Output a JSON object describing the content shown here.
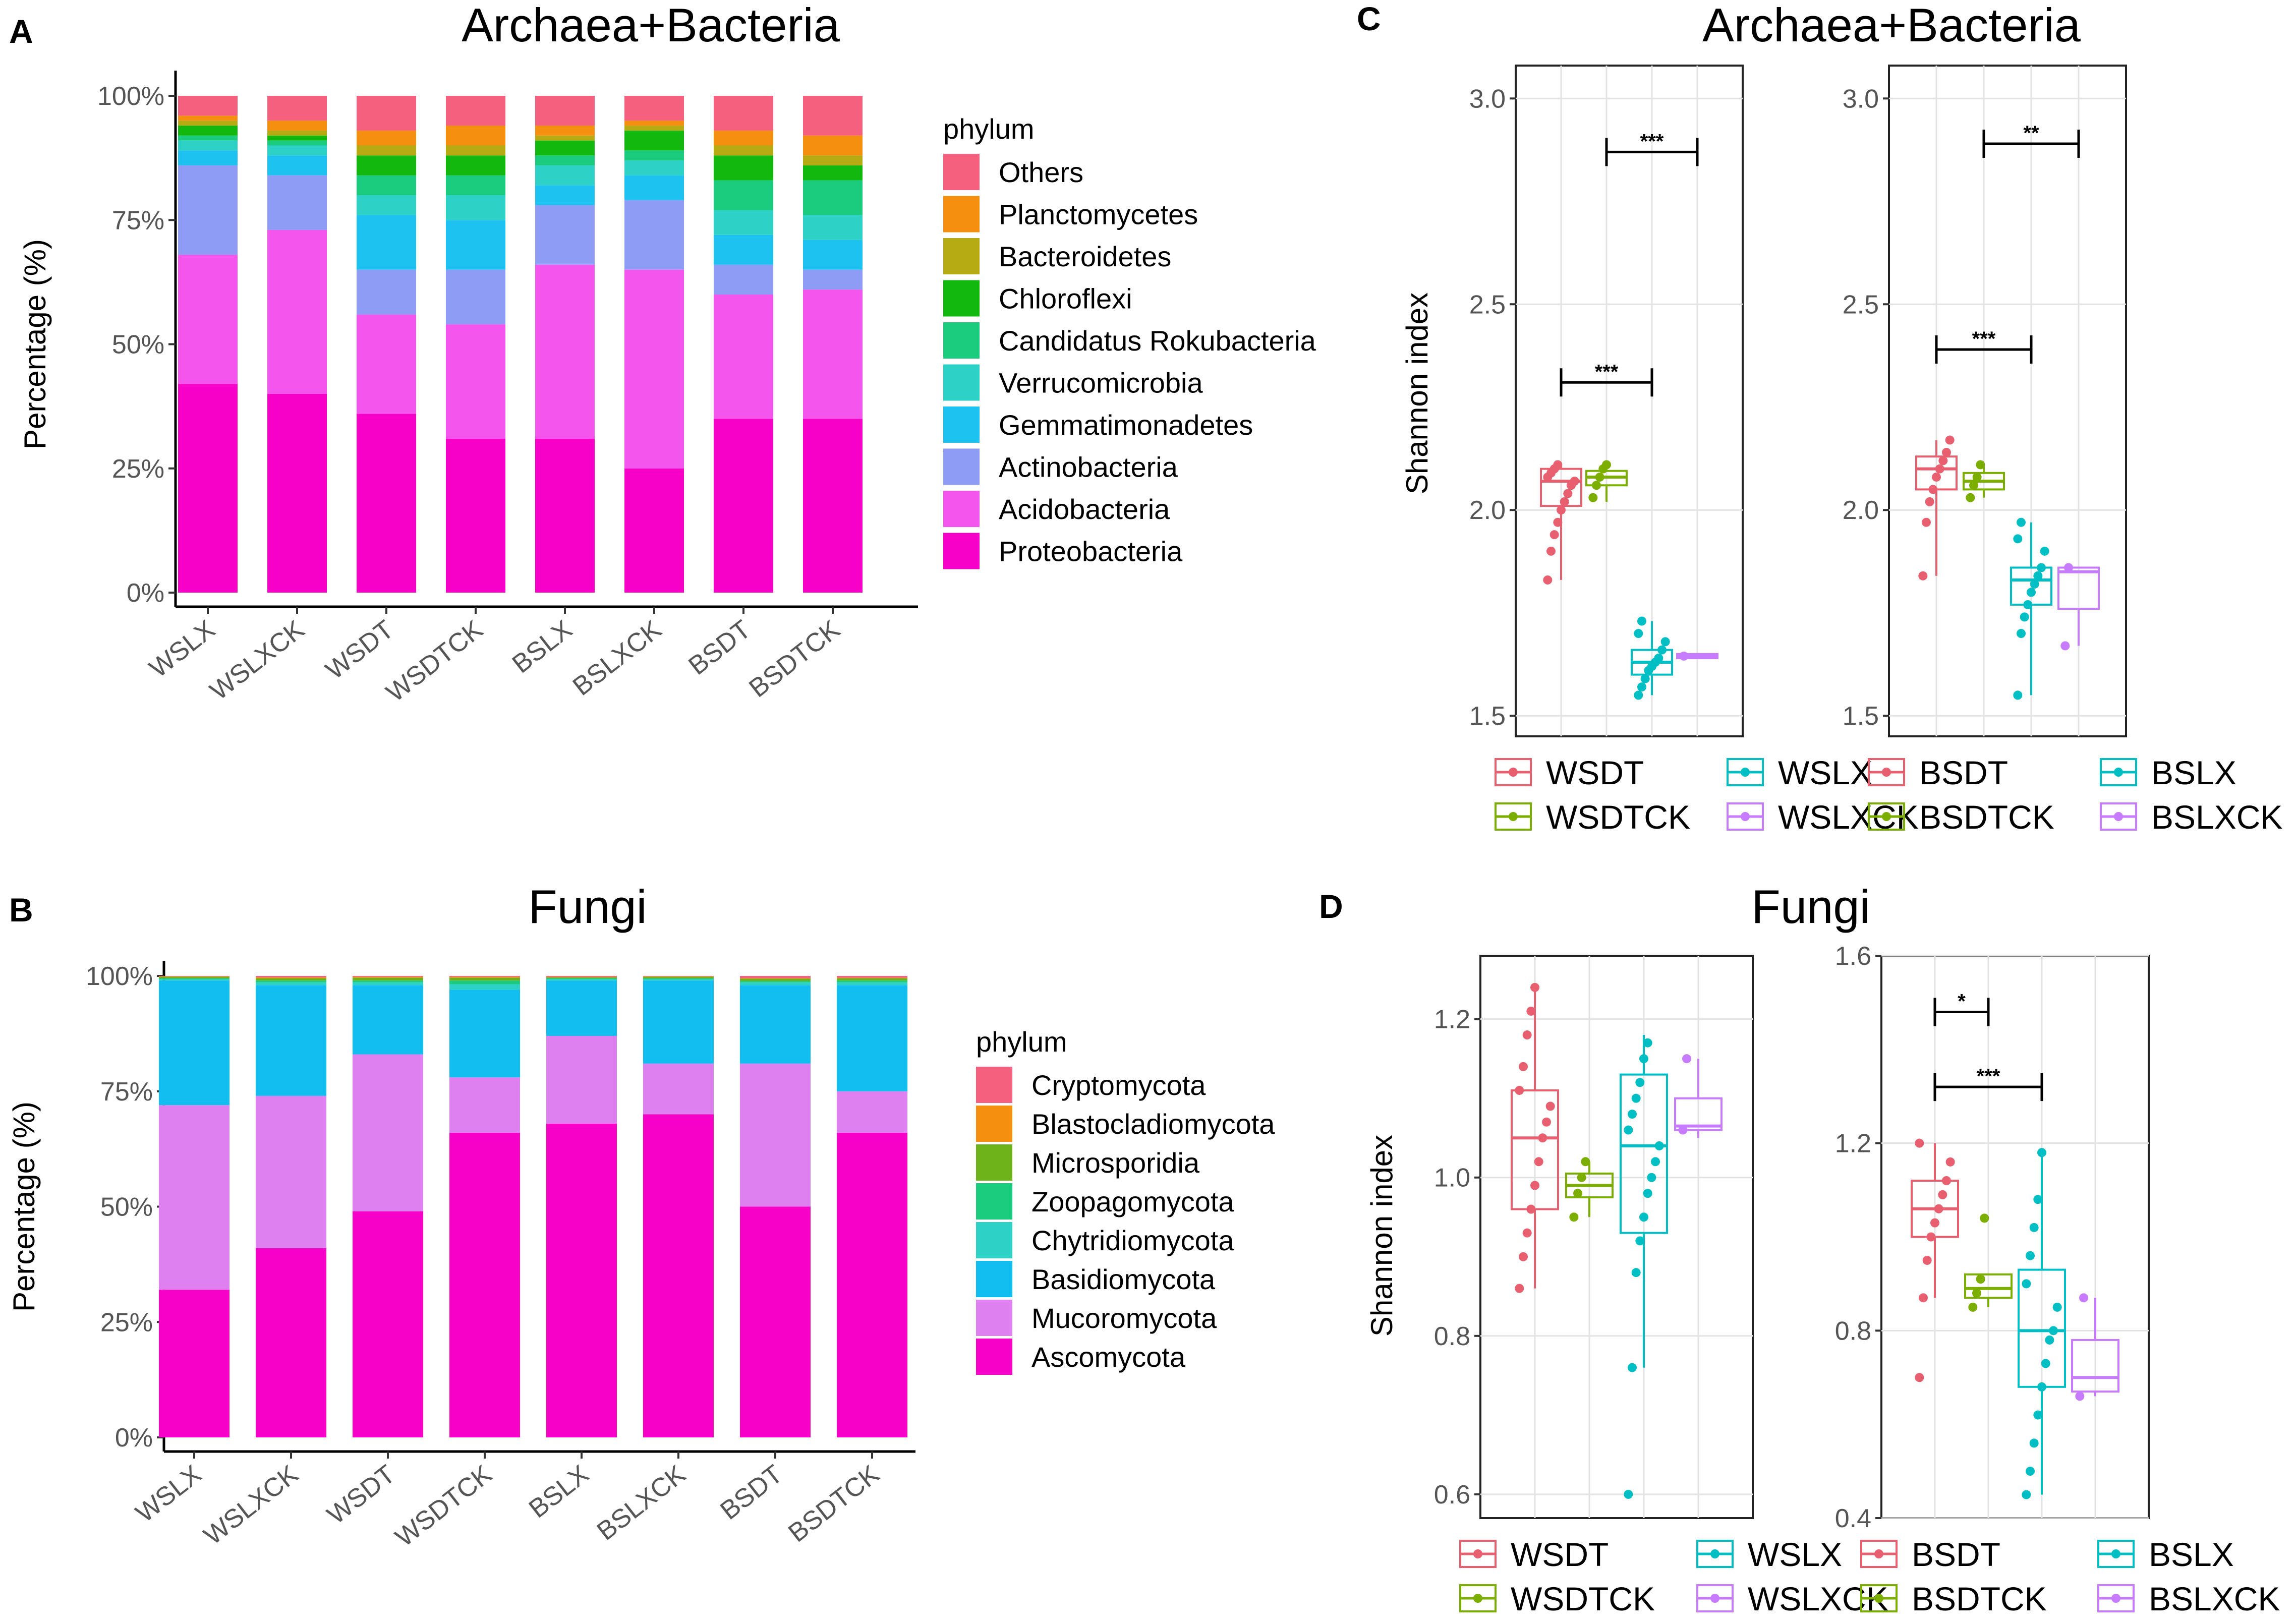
{
  "panels": {
    "A": "A",
    "B": "B",
    "C": "C",
    "D": "D"
  },
  "titles": {
    "A": "Archaea+Bacteria",
    "B": "Fungi",
    "C": "Archaea+Bacteria",
    "D": "Fungi"
  },
  "chart_data": [
    {
      "id": "A",
      "type": "stacked-bar",
      "title": "Archaea+Bacteria",
      "ylabel": "Percentage (%)",
      "ylim": [
        0,
        100
      ],
      "yticks": [
        "0%",
        "25%",
        "50%",
        "75%",
        "100%"
      ],
      "categories": [
        "WSLX",
        "WSLXCK",
        "WSDT",
        "WSDTCK",
        "BSLX",
        "BSLXCK",
        "BSDT",
        "BSDTCK"
      ],
      "legend_title": "phylum",
      "series": [
        {
          "name": "Proteobacteria",
          "color": "#f700c8",
          "values": [
            42,
            40,
            36,
            31,
            31,
            25,
            35,
            35
          ]
        },
        {
          "name": "Acidobacteria",
          "color": "#f455ec",
          "values": [
            26,
            33,
            20,
            23,
            35,
            40,
            25,
            26
          ]
        },
        {
          "name": "Actinobacteria",
          "color": "#8f9cf5",
          "values": [
            18,
            11,
            9,
            11,
            12,
            14,
            6,
            4
          ]
        },
        {
          "name": "Gemmatimonadetes",
          "color": "#1ec2f0",
          "values": [
            3,
            4,
            11,
            10,
            4,
            5,
            6,
            6
          ]
        },
        {
          "name": "Verrucomicrobia",
          "color": "#2ed1c6",
          "values": [
            2,
            2,
            4,
            5,
            4,
            3,
            5,
            5
          ]
        },
        {
          "name": "Candidatus Rokubacteria",
          "color": "#1ccc7e",
          "values": [
            1,
            1,
            4,
            4,
            2,
            2,
            6,
            7
          ]
        },
        {
          "name": "Chloroflexi",
          "color": "#13b80f",
          "values": [
            2,
            1,
            4,
            4,
            3,
            4,
            5,
            3
          ]
        },
        {
          "name": "Bacteroidetes",
          "color": "#b7ab13",
          "values": [
            1,
            1,
            2,
            2,
            1,
            1,
            2,
            2
          ]
        },
        {
          "name": "Planctomycetes",
          "color": "#f58f0f",
          "values": [
            1,
            2,
            3,
            4,
            2,
            1,
            3,
            4
          ]
        },
        {
          "name": "Others",
          "color": "#f5607f",
          "values": [
            4,
            5,
            7,
            6,
            6,
            5,
            7,
            8
          ]
        }
      ]
    },
    {
      "id": "B",
      "type": "stacked-bar",
      "title": "Fungi",
      "ylabel": "Percentage (%)",
      "ylim": [
        0,
        100
      ],
      "yticks": [
        "0%",
        "25%",
        "50%",
        "75%",
        "100%"
      ],
      "categories": [
        "WSLX",
        "WSLXCK",
        "WSDT",
        "WSDTCK",
        "BSLX",
        "BSLXCK",
        "BSDT",
        "BSDTCK"
      ],
      "legend_title": "phylum",
      "series": [
        {
          "name": "Ascomycota",
          "color": "#f700c8",
          "values": [
            32,
            41,
            49,
            66,
            68,
            70,
            50,
            66
          ]
        },
        {
          "name": "Mucoromycota",
          "color": "#df80f0",
          "values": [
            40,
            33,
            34,
            12,
            19,
            11,
            31,
            9
          ]
        },
        {
          "name": "Basidiomycota",
          "color": "#12bdf0",
          "values": [
            27,
            24,
            15,
            19,
            12,
            18,
            17,
            23
          ]
        },
        {
          "name": "Chytridiomycota",
          "color": "#2ed1c6",
          "values": [
            0.3,
            0.6,
            0.6,
            1.2,
            0.3,
            0.3,
            0.6,
            0.6
          ]
        },
        {
          "name": "Zoopagomycota",
          "color": "#1ccc7e",
          "values": [
            0.2,
            0.4,
            0.4,
            0.8,
            0.2,
            0.2,
            0.3,
            0.4
          ]
        },
        {
          "name": "Microsporidia",
          "color": "#6fb31b",
          "values": [
            0.3,
            0.5,
            0.6,
            0.6,
            0.2,
            0.3,
            0.5,
            0.5
          ]
        },
        {
          "name": "Blastocladiomycota",
          "color": "#f58f0f",
          "values": [
            0.1,
            0.2,
            0.2,
            0.2,
            0.1,
            0.1,
            0.1,
            0.1
          ]
        },
        {
          "name": "Cryptomycota",
          "color": "#f5607f",
          "values": [
            0.1,
            0.3,
            0.2,
            0.2,
            0.2,
            0.1,
            0.5,
            0.4
          ]
        }
      ]
    },
    {
      "id": "C",
      "type": "box",
      "title": "Archaea+Bacteria",
      "ylabel": "Shannon index",
      "subplots": [
        {
          "ylim": [
            1.45,
            3.08
          ],
          "yticks": [
            "1.5",
            "2.0",
            "2.5",
            "3.0"
          ],
          "groups": [
            {
              "name": "WSDT",
              "color": "#e8606f",
              "q1": 2.01,
              "median": 2.07,
              "q3": 2.1,
              "min": 1.83,
              "max": 2.11,
              "points": [
                1.83,
                1.9,
                1.94,
                1.97,
                2.0,
                2.02,
                2.04,
                2.06,
                2.07,
                2.08,
                2.09,
                2.1,
                2.11
              ]
            },
            {
              "name": "WSDTCK",
              "color": "#7cae00",
              "q1": 2.06,
              "median": 2.08,
              "q3": 2.095,
              "min": 2.02,
              "max": 2.11,
              "points": [
                2.03,
                2.06,
                2.08,
                2.1,
                2.11
              ]
            },
            {
              "name": "WSLX",
              "color": "#00bfc4",
              "q1": 1.6,
              "median": 1.63,
              "q3": 1.66,
              "min": 1.55,
              "max": 1.73,
              "points": [
                1.55,
                1.57,
                1.59,
                1.61,
                1.62,
                1.63,
                1.64,
                1.66,
                1.68,
                1.7,
                1.73
              ]
            },
            {
              "name": "WSLXCK",
              "color": "#c77cff",
              "q1": 1.64,
              "median": 1.645,
              "q3": 1.65,
              "min": 1.64,
              "max": 1.65,
              "points": [
                1.645
              ]
            }
          ],
          "brackets": [
            {
              "from": 0,
              "to": 2,
              "y": 2.31,
              "label": "***"
            },
            {
              "from": 1,
              "to": 3,
              "y": 2.87,
              "label": "***"
            }
          ],
          "legend": [
            "WSDT",
            "WSDTCK",
            "WSLX",
            "WSLXCK"
          ]
        },
        {
          "ylim": [
            1.45,
            3.08
          ],
          "yticks": [
            "1.5",
            "2.0",
            "2.5",
            "3.0"
          ],
          "groups": [
            {
              "name": "BSDT",
              "color": "#e8606f",
              "q1": 2.05,
              "median": 2.1,
              "q3": 2.13,
              "min": 1.84,
              "max": 2.17,
              "points": [
                1.84,
                1.97,
                2.02,
                2.05,
                2.08,
                2.1,
                2.12,
                2.14,
                2.17
              ]
            },
            {
              "name": "BSDTCK",
              "color": "#7cae00",
              "q1": 2.05,
              "median": 2.07,
              "q3": 2.09,
              "min": 2.03,
              "max": 2.11,
              "points": [
                2.03,
                2.06,
                2.08,
                2.11
              ]
            },
            {
              "name": "BSLX",
              "color": "#00bfc4",
              "q1": 1.77,
              "median": 1.83,
              "q3": 1.86,
              "min": 1.55,
              "max": 1.97,
              "points": [
                1.55,
                1.7,
                1.74,
                1.77,
                1.8,
                1.82,
                1.84,
                1.86,
                1.9,
                1.93,
                1.97
              ]
            },
            {
              "name": "BSLXCK",
              "color": "#c77cff",
              "q1": 1.76,
              "median": 1.85,
              "q3": 1.86,
              "min": 1.67,
              "max": 1.86,
              "points": [
                1.67,
                1.86
              ]
            }
          ],
          "brackets": [
            {
              "from": 0,
              "to": 2,
              "y": 2.39,
              "label": "***"
            },
            {
              "from": 1,
              "to": 3,
              "y": 2.89,
              "label": "**"
            }
          ],
          "legend": [
            "BSDT",
            "BSDTCK",
            "BSLX",
            "BSLXCK"
          ]
        }
      ]
    },
    {
      "id": "D",
      "type": "box",
      "title": "Fungi",
      "ylabel": "Shannon index",
      "subplots": [
        {
          "ylim": [
            0.57,
            1.28
          ],
          "yticks": [
            "0.6",
            "0.8",
            "1.0",
            "1.2"
          ],
          "groups": [
            {
              "name": "WSDT",
              "color": "#e8606f",
              "q1": 0.96,
              "median": 1.05,
              "q3": 1.11,
              "min": 0.86,
              "max": 1.24,
              "points": [
                0.86,
                0.9,
                0.93,
                0.96,
                0.99,
                1.02,
                1.05,
                1.07,
                1.09,
                1.11,
                1.14,
                1.18,
                1.21,
                1.24
              ]
            },
            {
              "name": "WSDTCK",
              "color": "#7cae00",
              "q1": 0.975,
              "median": 0.99,
              "q3": 1.005,
              "min": 0.95,
              "max": 1.02,
              "points": [
                0.95,
                0.98,
                1.0,
                1.02
              ]
            },
            {
              "name": "WSLX",
              "color": "#00bfc4",
              "q1": 0.93,
              "median": 1.04,
              "q3": 1.13,
              "min": 0.76,
              "max": 1.18,
              "points": [
                0.6,
                0.76,
                0.88,
                0.92,
                0.95,
                0.98,
                1.0,
                1.02,
                1.04,
                1.06,
                1.08,
                1.1,
                1.12,
                1.15,
                1.17
              ]
            },
            {
              "name": "WSLXCK",
              "color": "#c77cff",
              "q1": 1.06,
              "median": 1.065,
              "q3": 1.1,
              "min": 1.05,
              "max": 1.15,
              "points": [
                1.06,
                1.15
              ]
            }
          ],
          "brackets": [],
          "legend": [
            "WSDT",
            "WSDTCK",
            "WSLX",
            "WSLXCK"
          ]
        },
        {
          "ylim": [
            0.4,
            1.6
          ],
          "yticks": [
            "0.4",
            "0.8",
            "1.2",
            "1.6"
          ],
          "groups": [
            {
              "name": "BSDT",
              "color": "#e8606f",
              "q1": 1.0,
              "median": 1.06,
              "q3": 1.12,
              "min": 0.87,
              "max": 1.2,
              "points": [
                0.7,
                0.87,
                0.95,
                1.0,
                1.03,
                1.06,
                1.09,
                1.12,
                1.16,
                1.2
              ]
            },
            {
              "name": "BSDTCK",
              "color": "#7cae00",
              "q1": 0.87,
              "median": 0.89,
              "q3": 0.92,
              "min": 0.85,
              "max": 0.92,
              "points": [
                0.85,
                0.88,
                0.91,
                1.04
              ]
            },
            {
              "name": "BSLX",
              "color": "#00bfc4",
              "q1": 0.68,
              "median": 0.8,
              "q3": 0.93,
              "min": 0.45,
              "max": 1.18,
              "points": [
                0.45,
                0.5,
                0.56,
                0.62,
                0.68,
                0.73,
                0.78,
                0.8,
                0.85,
                0.9,
                0.96,
                1.02,
                1.08,
                1.18
              ]
            },
            {
              "name": "BSLXCK",
              "color": "#c77cff",
              "q1": 0.67,
              "median": 0.7,
              "q3": 0.78,
              "min": 0.66,
              "max": 0.87,
              "points": [
                0.66,
                0.87
              ]
            }
          ],
          "brackets": [
            {
              "from": 0,
              "to": 1,
              "y": 1.48,
              "label": "*"
            },
            {
              "from": 0,
              "to": 2,
              "y": 1.32,
              "label": "***"
            }
          ],
          "legend": [
            "BSDT",
            "BSDTCK",
            "BSLX",
            "BSLXCK"
          ]
        }
      ]
    }
  ]
}
